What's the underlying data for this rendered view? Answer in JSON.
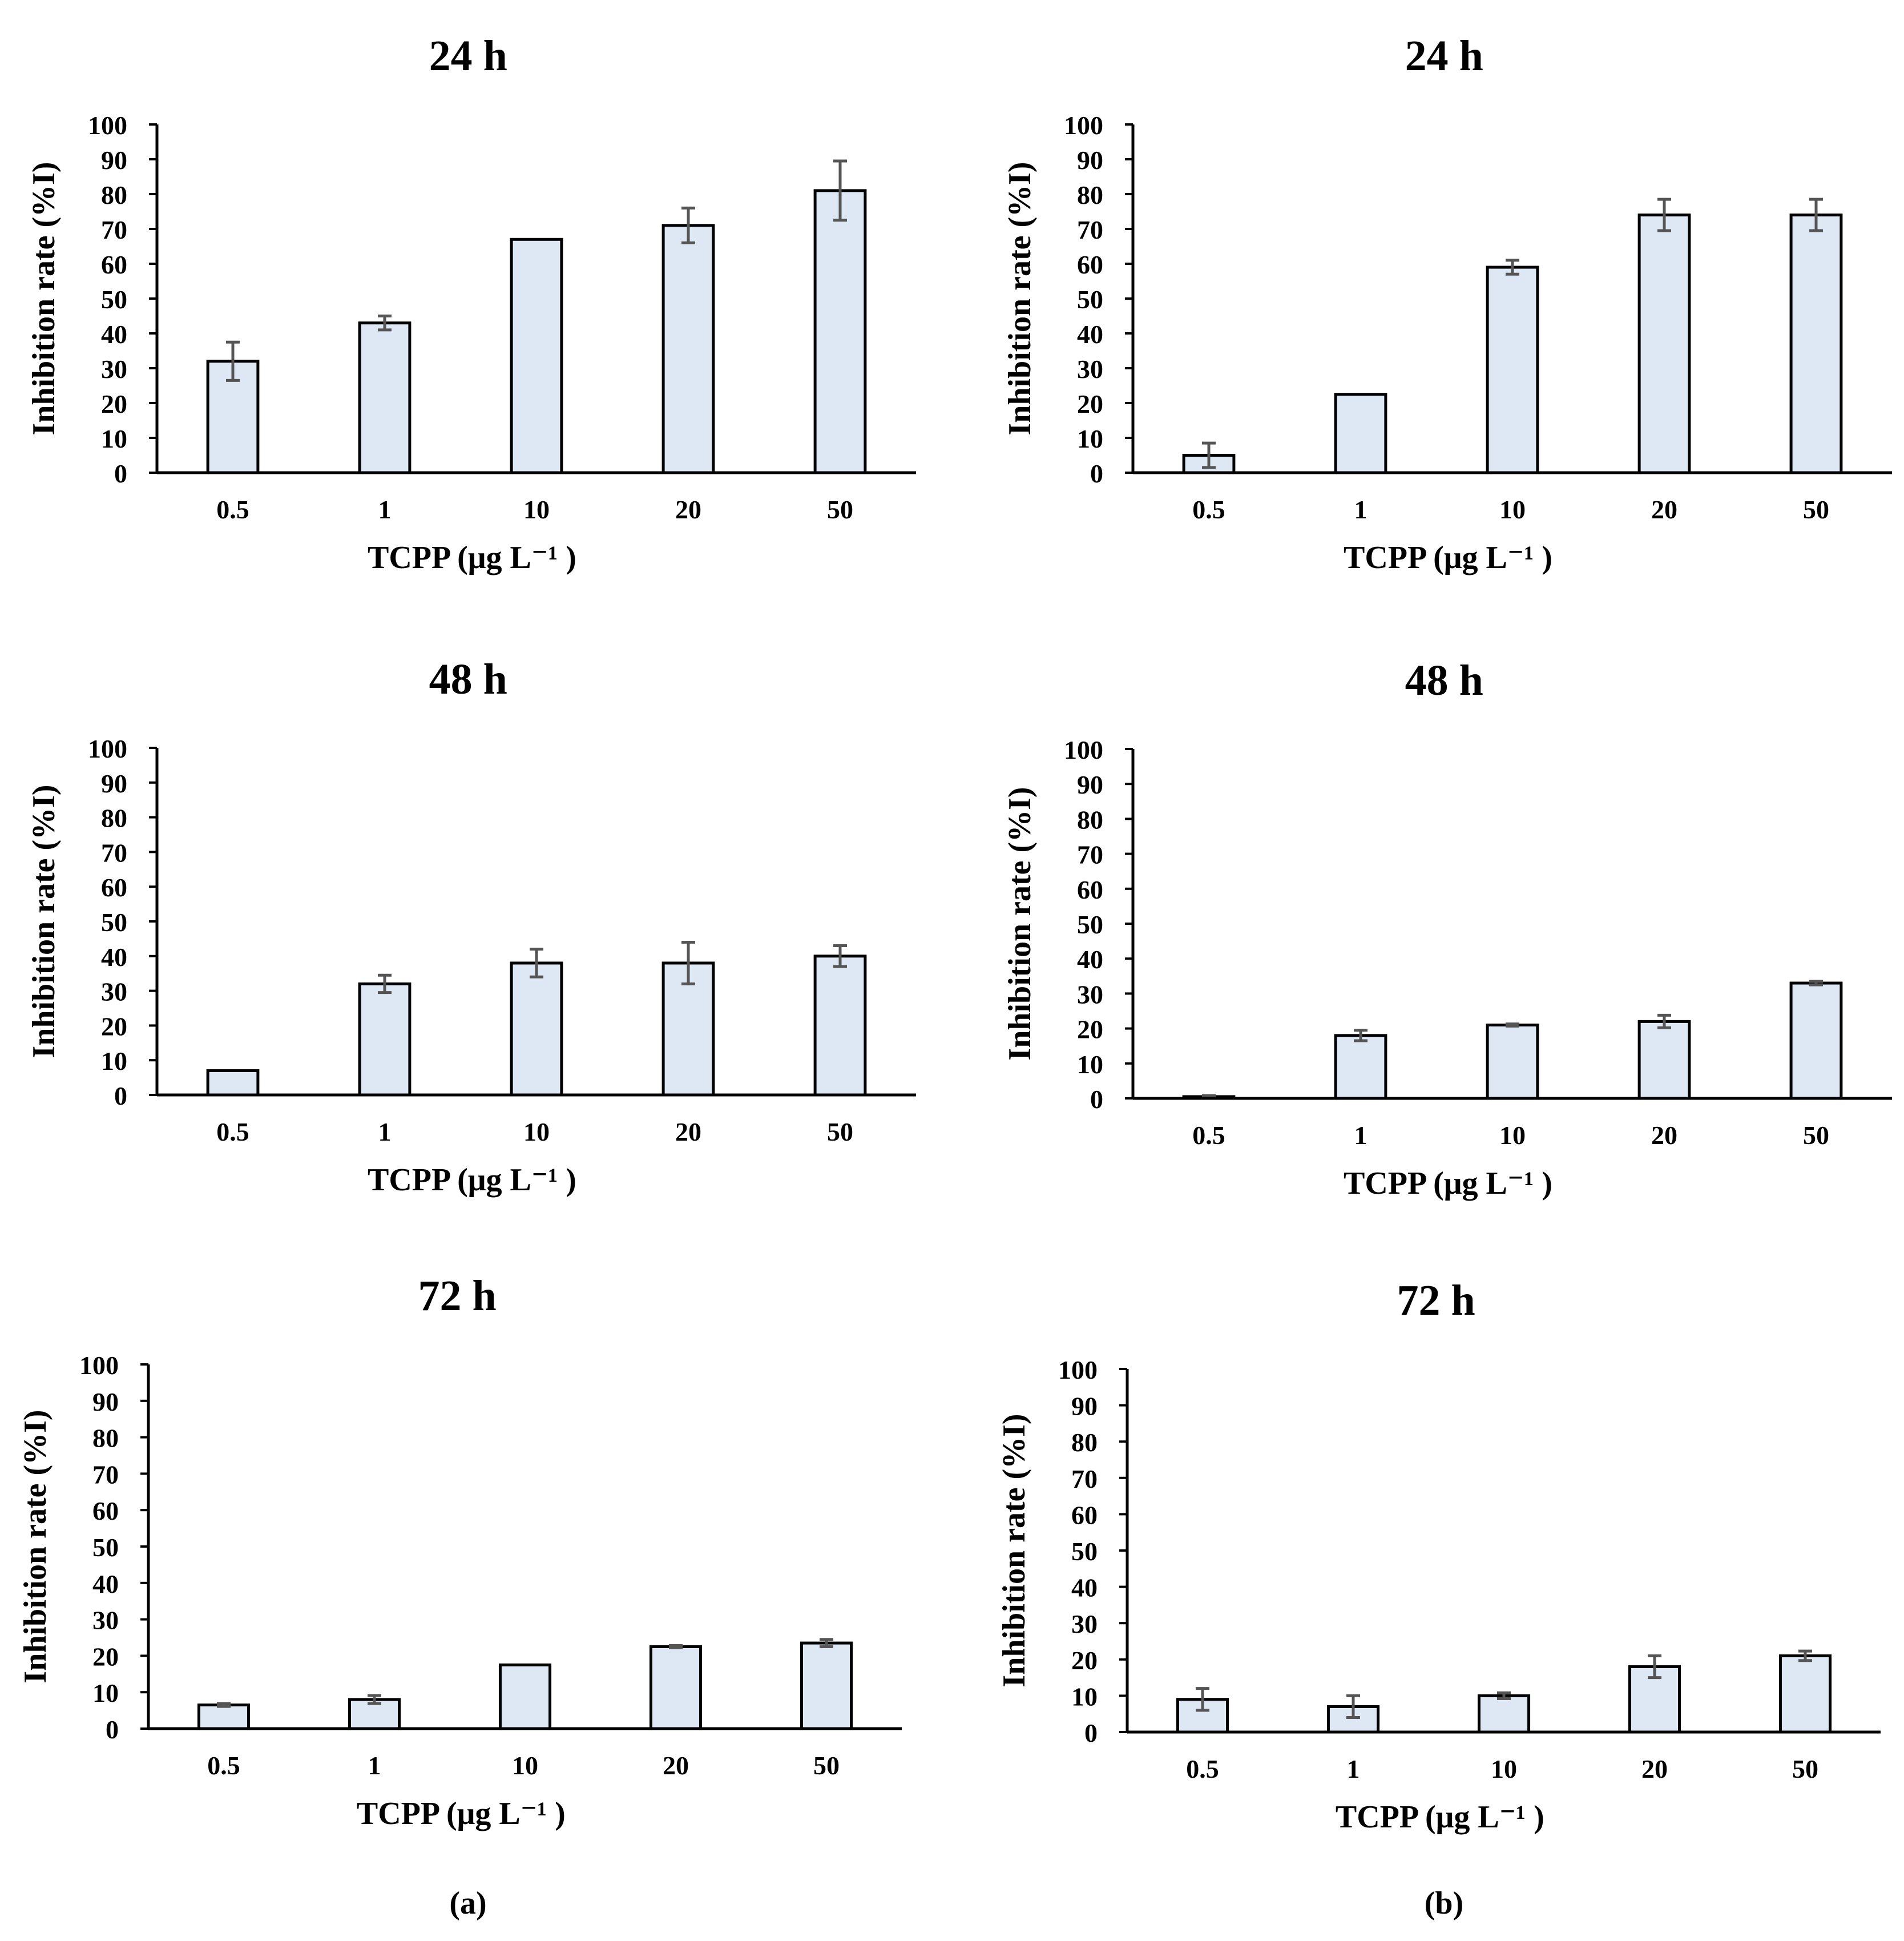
{
  "figure": {
    "panel_labels": [
      "(a)",
      "(b)"
    ]
  },
  "colors": {
    "bar_fill": "#DEE8F5",
    "bar_stroke": "#000000",
    "error_bar": "#555555",
    "axis": "#000000"
  },
  "chart_data": [
    {
      "type": "bar",
      "panel": "a",
      "title": "24 h",
      "xlabel": "TCPP (μg L⁻¹ )",
      "ylabel": "Inhibition rate (%I)",
      "categories": [
        "0.5",
        "1",
        "10",
        "20",
        "50"
      ],
      "values": [
        32,
        43,
        67,
        71,
        81
      ],
      "errors": [
        5.5,
        2,
        0,
        5,
        8.5
      ],
      "ylim": [
        0,
        100
      ],
      "yticks": [
        "0",
        "10",
        "20",
        "30",
        "40",
        "50",
        "60",
        "70",
        "80",
        "90",
        "100"
      ]
    },
    {
      "type": "bar",
      "panel": "b",
      "title": "24 h",
      "xlabel": "TCPP (μg L⁻¹ )",
      "ylabel": "Inhibition rate (%I)",
      "categories": [
        "0.5",
        "1",
        "10",
        "20",
        "50"
      ],
      "values": [
        5,
        22.5,
        59,
        74,
        74
      ],
      "errors": [
        3.5,
        0,
        2,
        4.5,
        4.5
      ],
      "ylim": [
        0,
        100
      ],
      "yticks": [
        "0",
        "10",
        "20",
        "30",
        "40",
        "50",
        "60",
        "70",
        "80",
        "90",
        "100"
      ]
    },
    {
      "type": "bar",
      "panel": "a",
      "title": "48 h",
      "xlabel": "TCPP (μg L⁻¹ )",
      "ylabel": "Inhibition rate (%I)",
      "categories": [
        "0.5",
        "1",
        "10",
        "20",
        "50"
      ],
      "values": [
        7,
        32,
        38,
        38,
        40
      ],
      "errors": [
        0,
        2.5,
        4,
        6,
        3
      ],
      "ylim": [
        0,
        100
      ],
      "yticks": [
        "0",
        "10",
        "20",
        "30",
        "40",
        "50",
        "60",
        "70",
        "80",
        "90",
        "100"
      ]
    },
    {
      "type": "bar",
      "panel": "b",
      "title": "48 h",
      "xlabel": "TCPP (μg L⁻¹ )",
      "ylabel": "Inhibition rate (%I)",
      "categories": [
        "0.5",
        "1",
        "10",
        "20",
        "50"
      ],
      "values": [
        0.5,
        18,
        21,
        22,
        33
      ],
      "errors": [
        0.3,
        1.5,
        0.3,
        1.8,
        0.5
      ],
      "ylim": [
        0,
        100
      ],
      "yticks": [
        "0",
        "10",
        "20",
        "30",
        "40",
        "50",
        "60",
        "70",
        "80",
        "90",
        "100"
      ]
    },
    {
      "type": "bar",
      "panel": "a",
      "title": "72 h",
      "xlabel": "TCPP (μg L⁻¹ )",
      "ylabel": "Inhibition rate (%I)",
      "categories": [
        "0.5",
        "1",
        "10",
        "20",
        "50"
      ],
      "values": [
        6.5,
        8,
        17.5,
        22.5,
        23.5
      ],
      "errors": [
        0.4,
        1.1,
        0,
        0.3,
        1
      ],
      "ylim": [
        0,
        100
      ],
      "yticks": [
        "0",
        "10",
        "20",
        "30",
        "40",
        "50",
        "60",
        "70",
        "80",
        "90",
        "100"
      ]
    },
    {
      "type": "bar",
      "panel": "b",
      "title": "72 h",
      "xlabel": "TCPP (μg L⁻¹ )",
      "ylabel": "Inhibition rate (%I)",
      "categories": [
        "0.5",
        "1",
        "10",
        "20",
        "50"
      ],
      "values": [
        9,
        7,
        10,
        18,
        21
      ],
      "errors": [
        3,
        3,
        0.8,
        3,
        1.3
      ],
      "ylim": [
        0,
        100
      ],
      "yticks": [
        "0",
        "10",
        "20",
        "30",
        "40",
        "50",
        "60",
        "70",
        "80",
        "90",
        "100"
      ]
    }
  ]
}
